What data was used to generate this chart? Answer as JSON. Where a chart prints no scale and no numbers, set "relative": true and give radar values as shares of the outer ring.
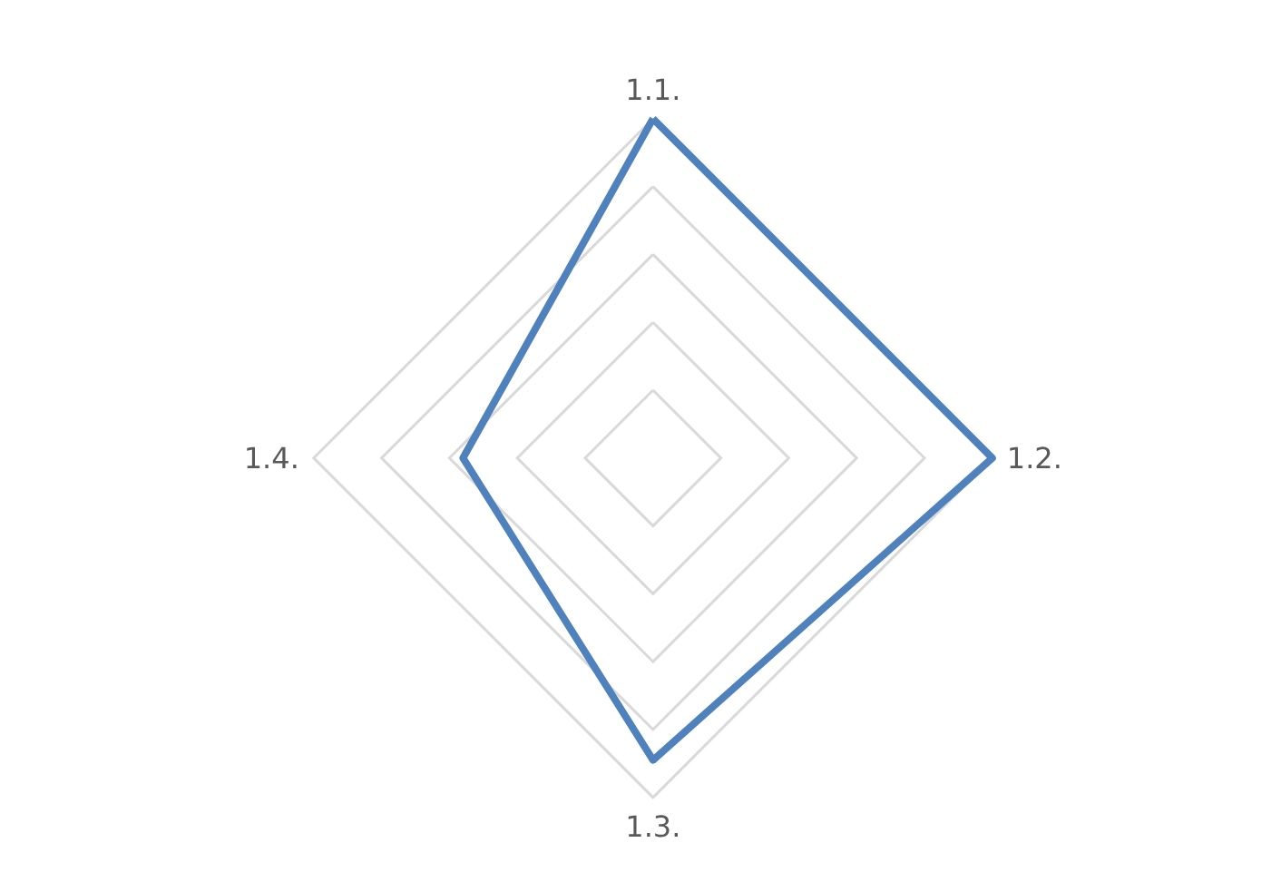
{
  "chart_data": {
    "type": "radar",
    "relative": true,
    "categories": [
      "1.1.",
      "1.2.",
      "1.3.",
      "1.4."
    ],
    "series": [
      {
        "color": "#4f81bd",
        "values": [
          1,
          1,
          0.89,
          0.56
        ]
      }
    ],
    "grid": true,
    "marker": "none",
    "line_style": "solid"
  }
}
